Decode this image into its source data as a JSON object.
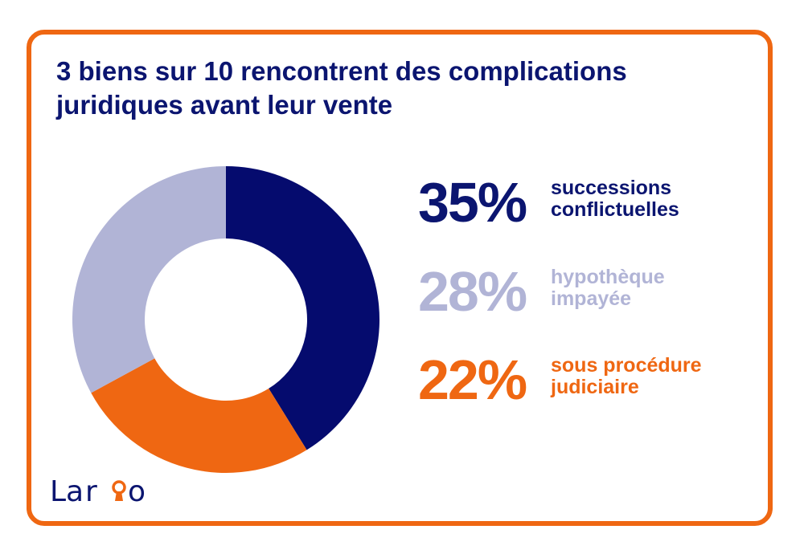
{
  "title_line1": "3 biens sur 10 rencontrent des complications",
  "title_line2": "juridiques avant leur vente",
  "colors": {
    "border": "#ef6712",
    "navy": "#0b1570",
    "navy_slice": "#050b6e",
    "lavender": "#b1b4d6",
    "orange": "#ef6712"
  },
  "chart_data": {
    "type": "pie",
    "variant": "donut",
    "title": "3 biens sur 10 rencontrent des complications juridiques avant leur vente",
    "slices": [
      {
        "label": "successions conflictuelles",
        "value": 35,
        "display": "35%",
        "color": "#050b6e"
      },
      {
        "label": "sous procédure judiciaire",
        "value": 22,
        "display": "22%",
        "color": "#ef6712"
      },
      {
        "label": "hypothèque impayée",
        "value": 28,
        "display": "28%",
        "color": "#b1b4d6"
      }
    ]
  },
  "stats": [
    {
      "pct": "35%",
      "line1": "successions",
      "line2": "conflictuelles",
      "color": "#0b1570"
    },
    {
      "pct": "28%",
      "line1": "hypothèque",
      "line2": "impayée",
      "color": "#b1b4d6"
    },
    {
      "pct": "22%",
      "line1": "sous procédure",
      "line2": "judiciaire",
      "color": "#ef6712"
    }
  ],
  "logo": {
    "text": "Lario",
    "icon": "keyhole-icon"
  }
}
